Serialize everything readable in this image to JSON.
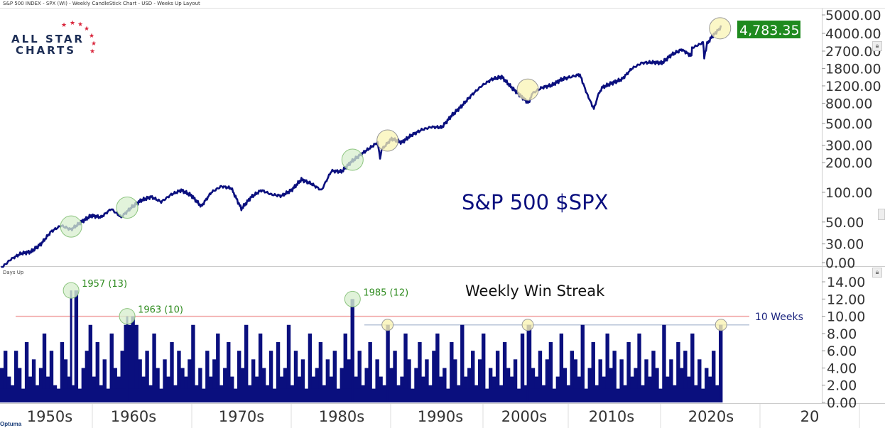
{
  "header": {
    "title": "S&P 500 INDEX - SPX (WI) - Weekly CandleStick Chart - USD - Weeks Up Layout"
  },
  "logo": {
    "line1": "ALL STAR",
    "line2": "CHARTS"
  },
  "footer_logo": "Optuma",
  "colors": {
    "line": "#0a0f7e",
    "badge": "#1f8a1f",
    "ref_red": "#f0a0a0",
    "ref_gray": "#b8c4d8",
    "green_circle": "#d8efcf",
    "yellow_circle": "#faf4b4",
    "annot_green": "#2e8b1e"
  },
  "chart_data": [
    {
      "type": "line",
      "title": "S&P 500 $SPX",
      "panel_label": "",
      "yscale": "log",
      "last_value_label": "4,783.35",
      "yticks": [
        "5000.00",
        "4000.00",
        "2700.00",
        "1800.00",
        "1200.00",
        "800.00",
        "500.00",
        "300.00",
        "200.00",
        "100.00",
        "50.00",
        "30.00",
        "0.00"
      ],
      "ytick_values": [
        5000,
        4000,
        2700,
        1800,
        1200,
        800,
        500,
        300,
        200,
        100,
        50,
        30,
        17
      ],
      "x": [
        1950,
        1951,
        1952,
        1953,
        1954,
        1955,
        1956,
        1957,
        1958,
        1959,
        1960,
        1961,
        1962,
        1963,
        1964,
        1965,
        1966,
        1967,
        1968,
        1969,
        1970,
        1971,
        1972,
        1973,
        1974,
        1975,
        1976,
        1977,
        1978,
        1979,
        1980,
        1981,
        1982,
        1983,
        1984,
        1985,
        1986,
        1987.6,
        1987.85,
        1988,
        1989,
        1990,
        1991,
        1992,
        1993,
        1994,
        1995,
        1996,
        1997,
        1998,
        1999,
        2000,
        2001,
        2002.7,
        2003,
        2004,
        2005,
        2006,
        2007.8,
        2008.5,
        2009.2,
        2009.6,
        2010,
        2011,
        2012,
        2013,
        2014,
        2015,
        2016,
        2017,
        2018,
        2018.95,
        2019,
        2020.1,
        2020.22,
        2020.5,
        2021,
        2021.95
      ],
      "y": [
        17,
        21,
        24,
        25,
        30,
        40,
        46,
        42,
        50,
        58,
        56,
        68,
        56,
        70,
        83,
        90,
        80,
        95,
        105,
        93,
        72,
        100,
        115,
        110,
        68,
        90,
        105,
        95,
        92,
        105,
        135,
        122,
        105,
        165,
        162,
        205,
        245,
        320,
        225,
        270,
        350,
        320,
        380,
        430,
        460,
        455,
        600,
        750,
        970,
        1200,
        1400,
        1480,
        1150,
        800,
        1000,
        1150,
        1220,
        1400,
        1560,
        1000,
        700,
        950,
        1150,
        1280,
        1400,
        1800,
        2050,
        2080,
        2050,
        2500,
        2800,
        2400,
        2900,
        3300,
        2300,
        3200,
        3800,
        4783.35
      ],
      "annotations": [
        {
          "year": 1957,
          "value": 45,
          "color": "green"
        },
        {
          "year": 1962.6,
          "value": 70,
          "color": "green"
        },
        {
          "year": 1985.1,
          "value": 214,
          "color": "green"
        },
        {
          "year": 1988.6,
          "value": 335,
          "color": "yellow"
        },
        {
          "year": 2002.6,
          "value": 1100,
          "color": "yellow"
        },
        {
          "year": 2021.8,
          "value": 4600,
          "color": "yellow"
        }
      ]
    },
    {
      "type": "bar",
      "panel_label": "Days Up",
      "title": "Weekly Win Streak",
      "yticks": [
        "14.00",
        "12.00",
        "10.00",
        "8.00",
        "6.00",
        "4.00",
        "2.00",
        "0.00"
      ],
      "ytick_values": [
        14,
        12,
        10,
        8,
        6,
        4,
        2,
        0
      ],
      "ylim": [
        0,
        14
      ],
      "reference_lines": [
        {
          "value": 10,
          "label": "10 Weeks",
          "color": "red"
        },
        {
          "value": 9,
          "label": "",
          "color": "gray"
        }
      ],
      "values": [
        4,
        6,
        3,
        2,
        6,
        4,
        1,
        7,
        3,
        5,
        2,
        4,
        8,
        3,
        6,
        2,
        1,
        7,
        5,
        3,
        2,
        13,
        1,
        4,
        6,
        9,
        3,
        7,
        2,
        5,
        1,
        8,
        4,
        3,
        6,
        9,
        9,
        10,
        9,
        5,
        3,
        6,
        2,
        8,
        4,
        1,
        5,
        3,
        7,
        2,
        6,
        4,
        3,
        5,
        9,
        2,
        4,
        1,
        6,
        3,
        5,
        8,
        2,
        4,
        7,
        3,
        1,
        6,
        4,
        9,
        2,
        5,
        3,
        8,
        4,
        2,
        6,
        1,
        7,
        3,
        4,
        9,
        2,
        6,
        3,
        5,
        1,
        8,
        3,
        4,
        7,
        2,
        5,
        3,
        6,
        1,
        4,
        8,
        5,
        12,
        3,
        6,
        2,
        4,
        7,
        1,
        5,
        3,
        2,
        9,
        4,
        6,
        2,
        3,
        8,
        5,
        1,
        4,
        7,
        3,
        5,
        2,
        6,
        8,
        3,
        4,
        1,
        7,
        5,
        2,
        9,
        3,
        4,
        6,
        2,
        5,
        8,
        1,
        4,
        3,
        6,
        2,
        7,
        4,
        3,
        5,
        1,
        8,
        2,
        9,
        4,
        3,
        6,
        2,
        5,
        7,
        1,
        3,
        8,
        4,
        2,
        6,
        5,
        3,
        9,
        1,
        4,
        7,
        2,
        5,
        3,
        8,
        4,
        6,
        1,
        5,
        2,
        7,
        3,
        4,
        8,
        2,
        5,
        3,
        6,
        4,
        1,
        9,
        3,
        5,
        2,
        7,
        4,
        6,
        3,
        8,
        2,
        5,
        1,
        4,
        3,
        6,
        2,
        9
      ],
      "peaks": [
        {
          "label": "1957 (13)",
          "year": 1957,
          "value": 13,
          "color": "green"
        },
        {
          "label": "1963 (10)",
          "year": 1962.6,
          "value": 10,
          "color": "green"
        },
        {
          "label": "1985 (12)",
          "year": 1985.1,
          "value": 12,
          "color": "green"
        },
        {
          "label": "",
          "year": 1988.6,
          "value": 9,
          "color": "yellow"
        },
        {
          "label": "",
          "year": 2002.6,
          "value": 9,
          "color": "yellow"
        },
        {
          "label": "",
          "year": 2021.9,
          "value": 9,
          "color": "yellow"
        }
      ]
    }
  ],
  "xaxis": {
    "labels": [
      "1950s",
      "1960s",
      "1970s",
      "1980s",
      "1990s",
      "2000s",
      "2010s",
      "2020s",
      "20"
    ]
  }
}
